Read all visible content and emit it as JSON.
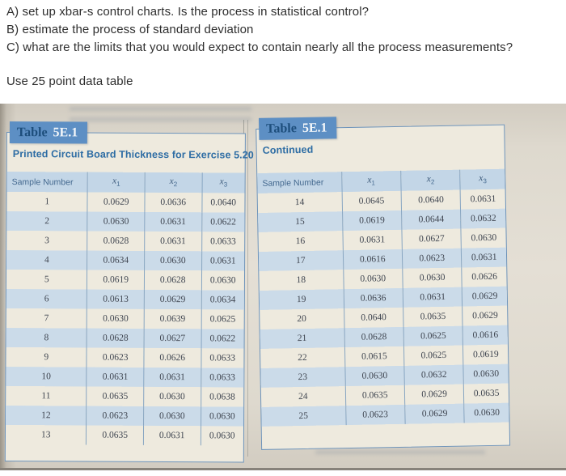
{
  "question": {
    "line_a": "A) set up xbar-s control charts. Is the process in statistical control?",
    "line_b": "B) estimate the process of standard deviation",
    "line_c": "C) what are the limits that you would expect to contain nearly all the process measurements?",
    "note": "Use 25 point data table"
  },
  "tables": {
    "left": {
      "tag_word": "Table",
      "tag_number": "5E.1",
      "subtitle": "Printed Circuit Board Thickness for Exercise 5.20",
      "columns": [
        {
          "label": "Sample Number",
          "sub": ""
        },
        {
          "label": "x",
          "sub": "1"
        },
        {
          "label": "x",
          "sub": "2"
        },
        {
          "label": "x",
          "sub": "3"
        }
      ],
      "rows": [
        [
          "1",
          "0.0629",
          "0.0636",
          "0.0640"
        ],
        [
          "2",
          "0.0630",
          "0.0631",
          "0.0622"
        ],
        [
          "3",
          "0.0628",
          "0.0631",
          "0.0633"
        ],
        [
          "4",
          "0.0634",
          "0.0630",
          "0.0631"
        ],
        [
          "5",
          "0.0619",
          "0.0628",
          "0.0630"
        ],
        [
          "6",
          "0.0613",
          "0.0629",
          "0.0634"
        ],
        [
          "7",
          "0.0630",
          "0.0639",
          "0.0625"
        ],
        [
          "8",
          "0.0628",
          "0.0627",
          "0.0622"
        ],
        [
          "9",
          "0.0623",
          "0.0626",
          "0.0633"
        ],
        [
          "10",
          "0.0631",
          "0.0631",
          "0.0633"
        ],
        [
          "11",
          "0.0635",
          "0.0630",
          "0.0638"
        ],
        [
          "12",
          "0.0623",
          "0.0630",
          "0.0630"
        ],
        [
          "13",
          "0.0635",
          "0.0631",
          "0.0630"
        ]
      ]
    },
    "right": {
      "tag_word": "Table",
      "tag_number": "5E.1",
      "subtitle": "Continued",
      "columns": [
        {
          "label": "Sample Number",
          "sub": ""
        },
        {
          "label": "x",
          "sub": "1"
        },
        {
          "label": "x",
          "sub": "2"
        },
        {
          "label": "x",
          "sub": "3"
        }
      ],
      "rows": [
        [
          "14",
          "0.0645",
          "0.0640",
          "0.0631"
        ],
        [
          "15",
          "0.0619",
          "0.0644",
          "0.0632"
        ],
        [
          "16",
          "0.0631",
          "0.0627",
          "0.0630"
        ],
        [
          "17",
          "0.0616",
          "0.0623",
          "0.0631"
        ],
        [
          "18",
          "0.0630",
          "0.0630",
          "0.0626"
        ],
        [
          "19",
          "0.0636",
          "0.0631",
          "0.0629"
        ],
        [
          "20",
          "0.0640",
          "0.0635",
          "0.0629"
        ],
        [
          "21",
          "0.0628",
          "0.0625",
          "0.0616"
        ],
        [
          "22",
          "0.0615",
          "0.0625",
          "0.0619"
        ],
        [
          "23",
          "0.0630",
          "0.0632",
          "0.0630"
        ],
        [
          "24",
          "0.0635",
          "0.0629",
          "0.0635"
        ],
        [
          "25",
          "0.0623",
          "0.0629",
          "0.0630"
        ]
      ]
    }
  },
  "colors": {
    "banner_blue": "#5d8fc4",
    "banner_word_text": "#1d4e7c",
    "banner_number_text": "#f4f7fa",
    "subtitle_blue": "#2e6da4",
    "header_band_blue": "#c3d6e7",
    "alt_row_blue": "#cbdbe9",
    "table_cream": "#eeeade",
    "photo_beige": "#ded9ce",
    "table_border_blue": "#6d93ba"
  }
}
